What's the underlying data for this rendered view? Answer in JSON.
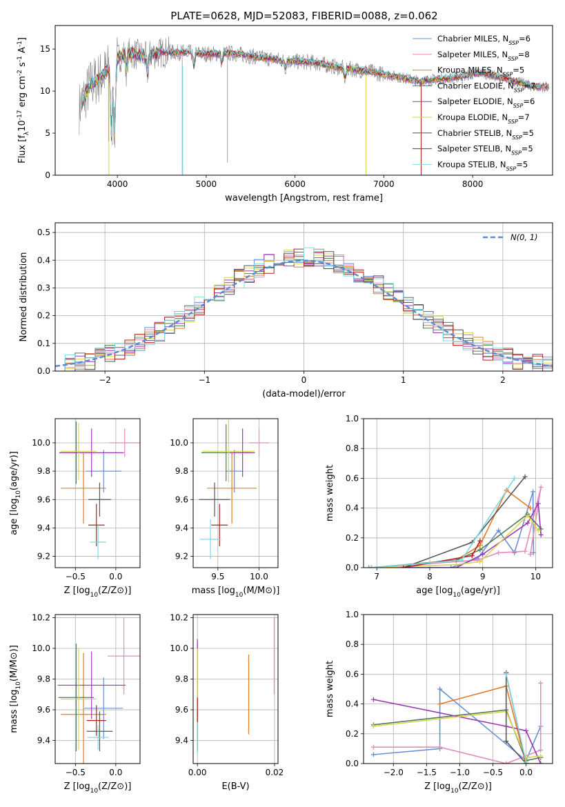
{
  "figure_title": "PLATE=0628, MJD=52083, FIBERID=0088, z=0.062",
  "colors": {
    "Chabrier MILES": "#6a8fd6",
    "Salpeter MILES": "#e58bb9",
    "Kroupa MILES": "#e07b26",
    "Chabrier ELODIE": "#4f7a55",
    "Salpeter ELODIE": "#9c36b5",
    "Kroupa ELODIE": "#d6d64a",
    "Chabrier STELIB": "#555555",
    "Salpeter STELIB": "#b11e1e",
    "Kroupa STELIB": "#7fd8e0",
    "data": "#808080",
    "normal": "#5b8bd6"
  },
  "chart_data": [
    {
      "id": "spectrum",
      "type": "line",
      "xlabel": "wavelength [Angstrom, rest frame]",
      "ylabel": "Flux [f_λ10^-17 erg cm^-2 s^-1 A^-1]",
      "xlim": [
        3300,
        8900
      ],
      "ylim": [
        0,
        17.8
      ],
      "xticks": [
        4000,
        5000,
        6000,
        7000,
        8000
      ],
      "yticks": [
        0,
        5,
        10,
        15
      ],
      "grid": false,
      "legend_position": "top-right",
      "legend": [
        "Chabrier MILES, N_SSP=6",
        "Salpeter MILES, N_SSP=8",
        "Kroupa MILES, N_SSP=5",
        "Chabrier ELODIE, N_SSP=7",
        "Salpeter ELODIE, N_SSP=6",
        "Kroupa ELODIE, N_SSP=7",
        "Chabrier STELIB, N_SSP=5",
        "Salpeter STELIB, N_SSP=5",
        "Kroupa STELIB, N_SSP=5"
      ],
      "continuum": [
        [
          3570,
          8.0
        ],
        [
          3700,
          10.8
        ],
        [
          3850,
          12.0
        ],
        [
          3950,
          13.5
        ],
        [
          4100,
          14.6
        ],
        [
          4300,
          14.2
        ],
        [
          4500,
          14.6
        ],
        [
          4800,
          14.6
        ],
        [
          5000,
          14.4
        ],
        [
          5300,
          14.5
        ],
        [
          5600,
          14.0
        ],
        [
          5900,
          13.6
        ],
        [
          6200,
          13.4
        ],
        [
          6500,
          12.8
        ],
        [
          6800,
          12.4
        ],
        [
          7100,
          11.8
        ],
        [
          7400,
          11.2
        ],
        [
          7600,
          11.4
        ],
        [
          7800,
          11.6
        ],
        [
          8100,
          12.2
        ],
        [
          8400,
          11.4
        ],
        [
          8700,
          10.5
        ]
      ]
    },
    {
      "id": "residuals",
      "type": "bar",
      "xlabel": "(data-model)/error",
      "ylabel": "Normed distribution",
      "xlim": [
        -2.5,
        2.5
      ],
      "ylim": [
        0,
        0.535
      ],
      "xticks": [
        -2,
        -1,
        0,
        1,
        2
      ],
      "yticks": [
        0.0,
        0.1,
        0.2,
        0.3,
        0.4,
        0.5
      ],
      "grid": true,
      "legend_position": "top-right",
      "legend": [
        "N(0,1)"
      ],
      "bin_width": 0.1
    },
    {
      "id": "age-vs-Z",
      "type": "scatter",
      "xlabel": "Z [log10(Z/Z⊙)]",
      "ylabel": "age [log10(age/yr)]",
      "xlim": [
        -0.75,
        0.3
      ],
      "ylim": [
        9.12,
        10.17
      ],
      "xticks": [
        -0.5,
        0.0
      ],
      "yticks": [
        9.2,
        9.4,
        9.6,
        9.8,
        10.0
      ],
      "grid": true,
      "points": [
        {
          "model": "Chabrier MILES",
          "x": -0.15,
          "y": 9.8,
          "xerr": 0.22,
          "yerr": 0.15
        },
        {
          "model": "Salpeter MILES",
          "x": 0.11,
          "y": 10.0,
          "xerr": 0.19,
          "yerr": 0.1
        },
        {
          "model": "Kroupa MILES",
          "x": -0.4,
          "y": 9.68,
          "xerr": 0.28,
          "yerr": 0.25
        },
        {
          "model": "Chabrier ELODIE",
          "x": -0.49,
          "y": 9.93,
          "xerr": 0.2,
          "yerr": 0.22
        },
        {
          "model": "Salpeter ELODIE",
          "x": -0.3,
          "y": 9.93,
          "xerr": 0.4,
          "yerr": 0.17
        },
        {
          "model": "Kroupa ELODIE",
          "x": -0.46,
          "y": 9.94,
          "xerr": 0.22,
          "yerr": 0.2
        },
        {
          "model": "Chabrier STELIB",
          "x": -0.2,
          "y": 9.6,
          "xerr": 0.14,
          "yerr": 0.12
        },
        {
          "model": "Salpeter STELIB",
          "x": -0.24,
          "y": 9.42,
          "xerr": 0.1,
          "yerr": 0.15
        },
        {
          "model": "Kroupa STELIB",
          "x": -0.22,
          "y": 9.3,
          "xerr": 0.1,
          "yerr": 0.12
        }
      ]
    },
    {
      "id": "age-vs-mass",
      "type": "scatter",
      "xlabel": "mass [log10(M/M⊙)]",
      "ylabel": "",
      "xlim": [
        9.2,
        10.23
      ],
      "ylim": [
        9.12,
        10.17
      ],
      "xticks": [
        9.5,
        10.0
      ],
      "yticks": [
        9.2,
        9.4,
        9.6,
        9.8,
        10.0
      ],
      "grid": true,
      "points": [
        {
          "model": "Chabrier MILES",
          "x": 9.7,
          "y": 9.8,
          "xerr": 0.1,
          "yerr": 0.15
        },
        {
          "model": "Salpeter MILES",
          "x": 10.0,
          "y": 10.0,
          "xerr": 0.12,
          "yerr": 0.1
        },
        {
          "model": "Kroupa MILES",
          "x": 9.67,
          "y": 9.68,
          "xerr": 0.3,
          "yerr": 0.25
        },
        {
          "model": "Chabrier ELODIE",
          "x": 9.6,
          "y": 9.93,
          "xerr": 0.3,
          "yerr": 0.2
        },
        {
          "model": "Salpeter ELODIE",
          "x": 9.8,
          "y": 9.93,
          "xerr": 0.15,
          "yerr": 0.17
        },
        {
          "model": "Kroupa ELODIE",
          "x": 9.63,
          "y": 9.94,
          "xerr": 0.32,
          "yerr": 0.22
        },
        {
          "model": "Chabrier STELIB",
          "x": 9.46,
          "y": 9.6,
          "xerr": 0.19,
          "yerr": 0.12
        },
        {
          "model": "Salpeter STELIB",
          "x": 9.52,
          "y": 9.42,
          "xerr": 0.1,
          "yerr": 0.15
        },
        {
          "model": "Kroupa STELIB",
          "x": 9.41,
          "y": 9.32,
          "xerr": 0.13,
          "yerr": 0.14
        }
      ]
    },
    {
      "id": "weight-vs-age",
      "type": "line",
      "xlabel": "age [log10(age/yr)]",
      "ylabel": "mass weight",
      "xlim": [
        6.75,
        10.32
      ],
      "ylim": [
        0,
        1.0
      ],
      "xticks": [
        7,
        8,
        9,
        10
      ],
      "yticks": [
        0.0,
        0.2,
        0.4,
        0.6,
        0.8,
        1.0
      ],
      "grid": true,
      "series": [
        {
          "model": "Chabrier MILES",
          "points": [
            [
              6.85,
              0.0
            ],
            [
              8.4,
              0.0
            ],
            [
              8.9,
              0.06
            ],
            [
              9.3,
              0.25
            ],
            [
              9.6,
              0.1
            ],
            [
              9.95,
              0.51
            ],
            [
              9.96,
              0.1
            ]
          ]
        },
        {
          "model": "Salpeter MILES",
          "points": [
            [
              6.9,
              0.0
            ],
            [
              8.9,
              0.05
            ],
            [
              9.3,
              0.1
            ],
            [
              9.8,
              0.11
            ],
            [
              10.1,
              0.54
            ],
            [
              9.9,
              0.09
            ]
          ]
        },
        {
          "model": "Kroupa MILES",
          "points": [
            [
              6.9,
              0.0
            ],
            [
              8.5,
              0.05
            ],
            [
              8.95,
              0.15
            ],
            [
              9.45,
              0.52
            ],
            [
              9.9,
              0.4
            ]
          ]
        },
        {
          "model": "Chabrier ELODIE",
          "points": [
            [
              6.9,
              0.0
            ],
            [
              8.5,
              0.05
            ],
            [
              8.95,
              0.12
            ],
            [
              9.85,
              0.36
            ],
            [
              10.1,
              0.26
            ]
          ]
        },
        {
          "model": "Salpeter ELODIE",
          "points": [
            [
              6.9,
              0.0
            ],
            [
              8.5,
              0.0
            ],
            [
              9.0,
              0.09
            ],
            [
              9.85,
              0.3
            ],
            [
              10.05,
              0.43
            ],
            [
              10.1,
              0.22
            ]
          ]
        },
        {
          "model": "Kroupa ELODIE",
          "points": [
            [
              6.9,
              0.0
            ],
            [
              8.5,
              0.02
            ],
            [
              8.95,
              0.04
            ],
            [
              9.85,
              0.35
            ],
            [
              10.05,
              0.25
            ]
          ]
        },
        {
          "model": "Chabrier STELIB",
          "points": [
            [
              7.5,
              0.0
            ],
            [
              8.8,
              0.17
            ],
            [
              9.8,
              0.61
            ]
          ]
        },
        {
          "model": "Salpeter STELIB",
          "points": [
            [
              7.5,
              0.0
            ],
            [
              8.8,
              0.08
            ],
            [
              8.95,
              0.18
            ]
          ]
        },
        {
          "model": "Kroupa STELIB",
          "points": [
            [
              6.9,
              0.0
            ],
            [
              8.6,
              0.05
            ],
            [
              9.6,
              0.6
            ]
          ]
        }
      ]
    },
    {
      "id": "mass-vs-Z",
      "type": "scatter",
      "xlabel": "Z [log10(Z/Z⊙)]",
      "ylabel": "mass [log10(M/M⊙)]",
      "xlim": [
        -0.75,
        0.3
      ],
      "ylim": [
        9.25,
        10.22
      ],
      "xticks": [
        -0.5,
        0.0
      ],
      "yticks": [
        9.4,
        9.6,
        9.8,
        10.0,
        10.2
      ],
      "grid": true,
      "points": [
        {
          "model": "Chabrier MILES",
          "x": -0.15,
          "y": 9.61,
          "xerr": 0.24,
          "yerr": 0.2
        },
        {
          "model": "Salpeter MILES",
          "x": 0.1,
          "y": 9.95,
          "xerr": 0.2,
          "yerr": 0.25
        },
        {
          "model": "Kroupa MILES",
          "x": -0.4,
          "y": 9.57,
          "xerr": 0.28,
          "yerr": 0.4
        },
        {
          "model": "Chabrier ELODIE",
          "x": -0.49,
          "y": 9.68,
          "xerr": 0.22,
          "yerr": 0.35
        },
        {
          "model": "Salpeter ELODIE",
          "x": -0.3,
          "y": 9.76,
          "xerr": 0.42,
          "yerr": 0.22
        },
        {
          "model": "Kroupa ELODIE",
          "x": -0.46,
          "y": 9.67,
          "xerr": 0.22,
          "yerr": 0.33
        },
        {
          "model": "Chabrier STELIB",
          "x": -0.2,
          "y": 9.46,
          "xerr": 0.16,
          "yerr": 0.13
        },
        {
          "model": "Salpeter STELIB",
          "x": -0.24,
          "y": 9.53,
          "xerr": 0.12,
          "yerr": 0.1
        },
        {
          "model": "Kroupa STELIB",
          "x": -0.22,
          "y": 9.42,
          "xerr": 0.13,
          "yerr": 0.08
        }
      ]
    },
    {
      "id": "mass-vs-ebv",
      "type": "scatter",
      "xlabel": "E(B-V)",
      "ylabel": "",
      "xlim": [
        -0.0011,
        0.0209
      ],
      "ylim": [
        9.25,
        10.22
      ],
      "xticks": [
        0.0,
        0.02
      ],
      "yticks": [
        9.4,
        9.6,
        9.8,
        10.0,
        10.2
      ],
      "grid": true,
      "points": [
        {
          "model": "Chabrier MILES",
          "x": 0.0,
          "y": 9.61,
          "yerr": 0.2
        },
        {
          "model": "Salpeter MILES",
          "x": 0.0199,
          "y": 9.95,
          "yerr": 0.25
        },
        {
          "model": "Kroupa MILES",
          "x": 0.0133,
          "y": 9.7,
          "yerr": 0.26
        },
        {
          "model": "Chabrier ELODIE",
          "x": 0.0,
          "y": 9.68,
          "yerr": 0.35
        },
        {
          "model": "Salpeter ELODIE",
          "x": 0.0,
          "y": 9.76,
          "yerr": 0.3
        },
        {
          "model": "Kroupa ELODIE",
          "x": 0.0,
          "y": 9.67,
          "yerr": 0.33
        },
        {
          "model": "Chabrier STELIB",
          "x": 0.0,
          "y": 9.46,
          "yerr": 0.13
        },
        {
          "model": "Salpeter STELIB",
          "x": 0.0,
          "y": 9.53,
          "yerr": 0.15
        },
        {
          "model": "Kroupa STELIB",
          "x": 0.0,
          "y": 9.42,
          "yerr": 0.1
        }
      ]
    },
    {
      "id": "weight-vs-Z",
      "type": "line",
      "xlabel": "Z [log10(Z/Z⊙)]",
      "ylabel": "mass weight",
      "xlim": [
        -2.45,
        0.4
      ],
      "ylim": [
        0,
        1.0
      ],
      "xticks": [
        -2.0,
        -1.5,
        -1.0,
        -0.5,
        0.0
      ],
      "yticks": [
        0.0,
        0.2,
        0.4,
        0.6,
        0.8,
        1.0
      ],
      "grid": true,
      "series": [
        {
          "model": "Chabrier MILES",
          "points": [
            [
              -2.3,
              0.06
            ],
            [
              -1.3,
              0.1
            ],
            [
              -1.3,
              0.5
            ],
            [
              0.0,
              0.02
            ],
            [
              0.22,
              0.25
            ]
          ]
        },
        {
          "model": "Salpeter MILES",
          "points": [
            [
              -2.3,
              0.11
            ],
            [
              -1.3,
              0.11
            ],
            [
              -0.3,
              0.0
            ],
            [
              0.22,
              0.09
            ],
            [
              0.22,
              0.54
            ]
          ]
        },
        {
          "model": "Kroupa MILES",
          "points": [
            [
              -1.3,
              0.4
            ],
            [
              -0.3,
              0.52
            ],
            [
              0.0,
              0.0
            ],
            [
              0.22,
              0.0
            ]
          ]
        },
        {
          "model": "Chabrier ELODIE",
          "points": [
            [
              -2.3,
              0.26
            ],
            [
              -0.3,
              0.36
            ],
            [
              0.0,
              0.02
            ],
            [
              0.22,
              0.04
            ]
          ]
        },
        {
          "model": "Salpeter ELODIE",
          "points": [
            [
              -2.3,
              0.43
            ],
            [
              -0.3,
              0.25
            ],
            [
              0.0,
              0.22
            ],
            [
              0.22,
              0.0
            ]
          ]
        },
        {
          "model": "Kroupa ELODIE",
          "points": [
            [
              -2.3,
              0.25
            ],
            [
              -0.3,
              0.35
            ],
            [
              0.0,
              0.04
            ],
            [
              0.22,
              0.05
            ]
          ]
        },
        {
          "model": "Chabrier STELIB",
          "points": [
            [
              -0.3,
              0.61
            ],
            [
              -0.3,
              0.15
            ],
            [
              0.0,
              0.0
            ]
          ]
        },
        {
          "model": "Salpeter STELIB",
          "points": [
            [
              -0.3,
              0.6
            ],
            [
              0.0,
              0.0
            ]
          ]
        },
        {
          "model": "Kroupa STELIB",
          "points": [
            [
              -0.3,
              0.6
            ],
            [
              0.0,
              0.01
            ]
          ]
        }
      ]
    }
  ]
}
